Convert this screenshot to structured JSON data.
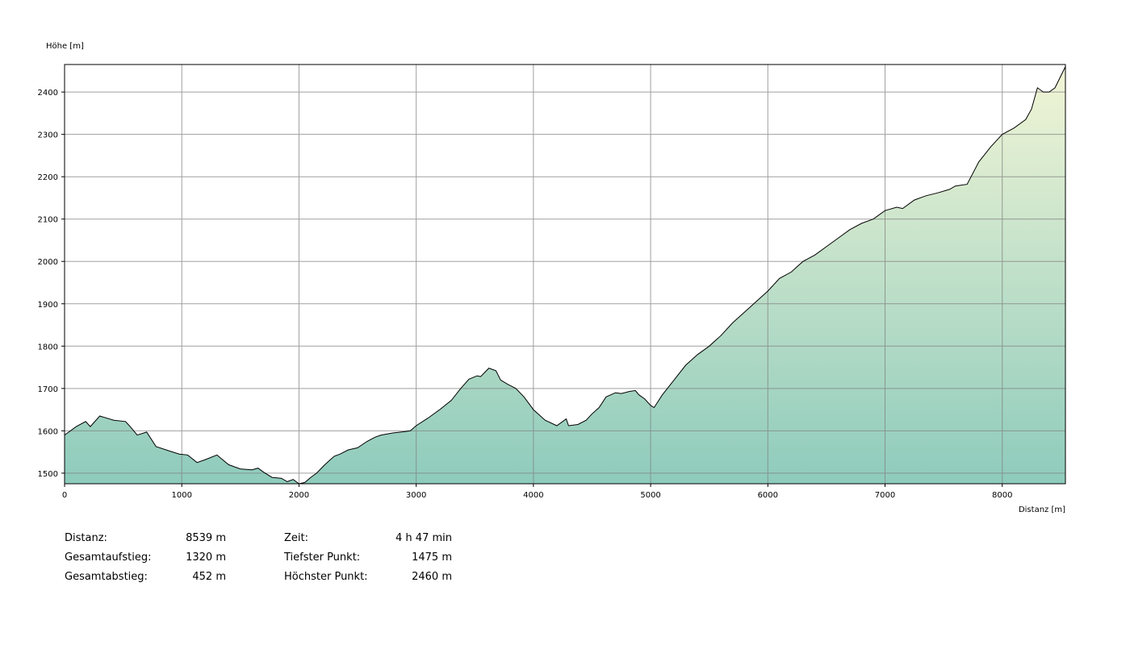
{
  "chart_data": {
    "type": "area",
    "xlabel": "Distanz [m]",
    "ylabel": "Höhe [m]",
    "xlim": [
      0,
      8539
    ],
    "ylim": [
      1475,
      2465
    ],
    "x_ticks": [
      0,
      1000,
      2000,
      3000,
      4000,
      5000,
      6000,
      7000,
      8000
    ],
    "y_ticks": [
      1500,
      1600,
      1700,
      1800,
      1900,
      2000,
      2100,
      2200,
      2300,
      2400
    ],
    "grid": true,
    "colors": {
      "fill_top": "#f2f5d6",
      "fill_bottom": "#8ecbbc",
      "line": "#000000",
      "grid": "#808080"
    },
    "series": [
      {
        "x": [
          0,
          100,
          180,
          220,
          300,
          420,
          520,
          560,
          620,
          700,
          780,
          900,
          980,
          1050,
          1130,
          1200,
          1300,
          1400,
          1500,
          1600,
          1650,
          1700,
          1770,
          1850,
          1900,
          1950,
          2000,
          2050,
          2100,
          2150,
          2220,
          2300,
          2350,
          2420,
          2500,
          2580,
          2650,
          2700,
          2800,
          2900,
          2950,
          3000,
          3100,
          3200,
          3300,
          3380,
          3450,
          3520,
          3550,
          3620,
          3680,
          3720,
          3780,
          3850,
          3920,
          4000,
          4100,
          4200,
          4280,
          4300,
          4380,
          4450,
          4500,
          4560,
          4620,
          4700,
          4750,
          4820,
          4870,
          4900,
          4950,
          5000,
          5030,
          5100,
          5200,
          5300,
          5400,
          5500,
          5600,
          5700,
          5800,
          5900,
          6000,
          6100,
          6200,
          6300,
          6400,
          6500,
          6600,
          6700,
          6800,
          6900,
          7000,
          7100,
          7150,
          7250,
          7350,
          7450,
          7550,
          7600,
          7700,
          7800,
          7900,
          8000,
          8100,
          8200,
          8250,
          8300,
          8350,
          8400,
          8450,
          8539
        ],
        "y": [
          1590,
          1610,
          1622,
          1610,
          1635,
          1625,
          1622,
          1610,
          1590,
          1597,
          1563,
          1552,
          1545,
          1543,
          1525,
          1532,
          1543,
          1520,
          1510,
          1508,
          1512,
          1502,
          1490,
          1488,
          1480,
          1485,
          1475,
          1478,
          1490,
          1500,
          1520,
          1540,
          1545,
          1555,
          1560,
          1575,
          1585,
          1590,
          1595,
          1598,
          1600,
          1612,
          1630,
          1650,
          1672,
          1700,
          1722,
          1730,
          1728,
          1748,
          1742,
          1720,
          1710,
          1700,
          1680,
          1650,
          1625,
          1612,
          1628,
          1612,
          1615,
          1625,
          1640,
          1655,
          1680,
          1690,
          1688,
          1693,
          1695,
          1685,
          1675,
          1660,
          1655,
          1685,
          1720,
          1755,
          1780,
          1800,
          1825,
          1855,
          1880,
          1905,
          1930,
          1960,
          1975,
          2000,
          2015,
          2035,
          2055,
          2075,
          2090,
          2100,
          2120,
          2128,
          2125,
          2145,
          2155,
          2162,
          2170,
          2178,
          2182,
          2235,
          2270,
          2300,
          2315,
          2335,
          2360,
          2410,
          2400,
          2400,
          2410,
          2460
        ]
      }
    ]
  },
  "stats": {
    "col1": [
      {
        "label": "Distanz:",
        "value": "8539 m"
      },
      {
        "label": "Gesamtaufstieg:",
        "value": "1320 m"
      },
      {
        "label": "Gesamtabstieg:",
        "value": "452 m"
      }
    ],
    "col2": [
      {
        "label": "Zeit:",
        "value": "4 h 47 min"
      },
      {
        "label": "Tiefster Punkt:",
        "value": "1475 m"
      },
      {
        "label": "Höchster Punkt:",
        "value": "2460 m"
      }
    ]
  }
}
